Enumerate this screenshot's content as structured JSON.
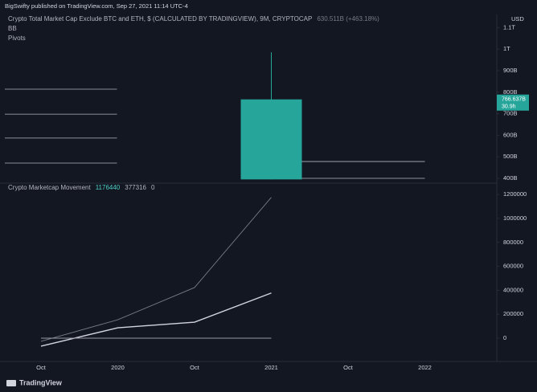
{
  "header": {
    "publisher": "BigSwifty published on TradingView.com, Sep 27, 2021 11:14 UTC-4",
    "currency": "USD",
    "brand": "TradingView"
  },
  "chart_data": [
    {
      "type": "candlestick",
      "title": "Crypto Total Market Cap Exclude BTC and ETH, $ (CALCULATED BY TRADINGVIEW), 9M, CRYPTOCAP",
      "legend_value": "630.511B (+463.18%)",
      "indicators": [
        "BB",
        "Pivots"
      ],
      "categories": [
        "Oct",
        "2020",
        "Oct",
        "2021",
        "Oct",
        "2022"
      ],
      "candle": {
        "category": "2021",
        "open": 395,
        "high": 985,
        "low": 395,
        "close": 766.637,
        "color": "#26a69a"
      },
      "close_label": "766.637B",
      "countdown": "30.9h",
      "pivots": {
        "left": [
          814,
          698,
          587,
          471
        ],
        "right": [
          478,
          400
        ],
        "color": "#b2b5be"
      },
      "ylim": [
        377.6,
        1161
      ],
      "yticks": [
        {
          "value": 400,
          "label": "400B"
        },
        {
          "value": 500,
          "label": "500B"
        },
        {
          "value": 600,
          "label": "600B"
        },
        {
          "value": 700,
          "label": "700B"
        },
        {
          "value": 800,
          "label": "800B"
        },
        {
          "value": 900,
          "label": "900B"
        },
        {
          "value": 1000,
          "label": "1T"
        },
        {
          "value": 1100,
          "label": "1.1T"
        }
      ]
    },
    {
      "type": "line",
      "title": "Crypto Marketcap Movement",
      "categories": [
        "Oct",
        "2020",
        "Oct",
        "2021",
        "Oct",
        "2022"
      ],
      "series": [
        {
          "name": "1176440",
          "color": "#787b86",
          "values": [
            -26800,
            154000,
            423000,
            1176440,
            null,
            null
          ]
        },
        {
          "name": "377316",
          "color": "#d1d4dc",
          "values": [
            -67000,
            87000,
            134000,
            377316,
            null,
            null
          ]
        },
        {
          "name": "0",
          "color": "#9598a1",
          "values": [
            0,
            0,
            0,
            0,
            null,
            null
          ]
        }
      ],
      "ylim": [
        -194600,
        1295000
      ],
      "yticks": [
        0,
        200000,
        400000,
        600000,
        800000,
        1000000,
        1200000
      ]
    }
  ]
}
